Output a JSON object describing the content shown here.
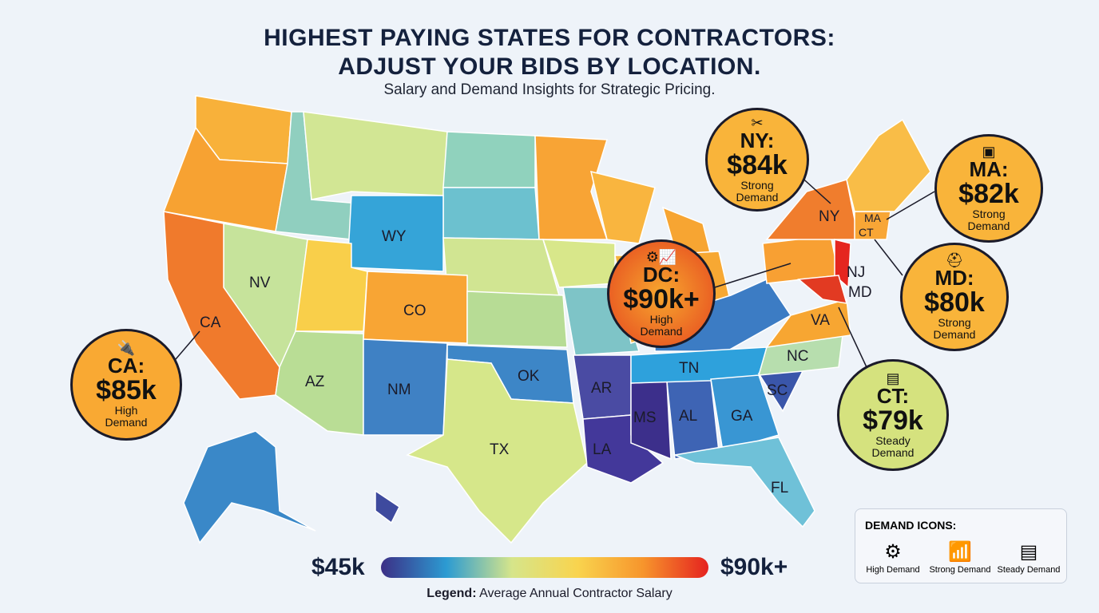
{
  "title_line1": "HIGHEST PAYING STATES FOR CONTRACTORS:",
  "title_line2": "ADJUST YOUR BIDS BY LOCATION.",
  "subtitle": "Salary and Demand Insights for Strategic Pricing.",
  "states": [
    {
      "label": "WY",
      "color": "#35a4d8"
    },
    {
      "label": "NV",
      "color": "#c6e39b"
    },
    {
      "label": "CO",
      "color": "#f8a534"
    },
    {
      "label": "CA",
      "color": "#f07a2c"
    },
    {
      "label": "AZ",
      "color": "#b9dd95"
    },
    {
      "label": "NM",
      "color": "#3f81c4"
    },
    {
      "label": "OK",
      "color": "#3d86c7"
    },
    {
      "label": "TX",
      "color": "#d6e78a"
    },
    {
      "label": "AR",
      "color": "#4a4ba3"
    },
    {
      "label": "MS",
      "color": "#3c2f8b"
    },
    {
      "label": "AL",
      "color": "#3e64b4"
    },
    {
      "label": "LA",
      "color": "#43389a"
    },
    {
      "label": "GA",
      "color": "#3996d3"
    },
    {
      "label": "SC",
      "color": "#3a56aa"
    },
    {
      "label": "TN",
      "color": "#2ea1dc"
    },
    {
      "label": "NC",
      "color": "#b7deae"
    },
    {
      "label": "VA",
      "color": "#f7a632"
    },
    {
      "label": "FL",
      "color": "#6fc1d8"
    },
    {
      "label": "NY",
      "color": "#f07d2d"
    },
    {
      "label": "MA",
      "color": "#f8a636"
    },
    {
      "label": "CT",
      "color": "#f8a032"
    },
    {
      "label": "NJ",
      "color": "#e5261f"
    },
    {
      "label": "MD",
      "color": "#e23a22"
    }
  ],
  "callouts": [
    {
      "state": "NY:",
      "value": "$84k",
      "demand": "Strong Demand",
      "icon": "tools-icon",
      "color": "#f9b43a"
    },
    {
      "state": "MA:",
      "value": "$82k",
      "demand": "Strong Demand",
      "icon": "chip-icon",
      "color": "#f9b43a"
    },
    {
      "state": "DC:",
      "value": "$90k+",
      "demand": "High Demand",
      "icon": "gears-chart-icon",
      "color": "#ee5a24"
    },
    {
      "state": "MD:",
      "value": "$80k",
      "demand": "Strong Demand",
      "icon": "hardhat-icon",
      "color": "#f9b43a"
    },
    {
      "state": "CT:",
      "value": "$79k",
      "demand": "Steady Demand",
      "icon": "blueprint-icon",
      "color": "#d5e27e"
    },
    {
      "state": "CA:",
      "value": "$85k",
      "demand": "High Demand",
      "icon": "plug-icon",
      "color": "#f9a933"
    }
  ],
  "legend": {
    "min": "$45k",
    "max": "$90k+",
    "caption_bold": "Legend:",
    "caption": "Average Annual Contractor Salary",
    "colors": [
      "#3c2f86",
      "#2c9bd2",
      "#d6e58a",
      "#f9d44e",
      "#f7952c",
      "#e5221f"
    ]
  },
  "demand_icons": {
    "heading": "DEMAND ICONS:",
    "items": [
      {
        "label": "High Demand",
        "icon": "gears-icon"
      },
      {
        "label": "Strong Demand",
        "icon": "bar-chart-icon"
      },
      {
        "label": "Steady Demand",
        "icon": "blueprint-icon"
      }
    ]
  }
}
